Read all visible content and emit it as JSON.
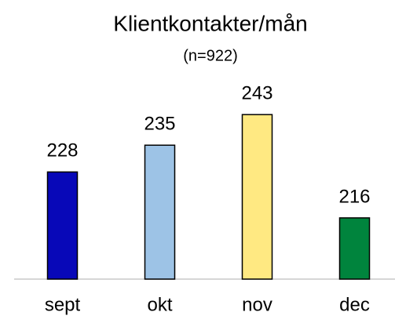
{
  "chart_data": {
    "type": "bar",
    "title": "Klientkontakter/mån",
    "subtitle": "(n=922)",
    "categories": [
      "sept",
      "okt",
      "nov",
      "dec"
    ],
    "values": [
      228,
      235,
      243,
      216
    ],
    "colors": [
      "#0808b8",
      "#9dc3e6",
      "#ffe982",
      "#00843d"
    ],
    "ylim": [
      200,
      250
    ]
  }
}
